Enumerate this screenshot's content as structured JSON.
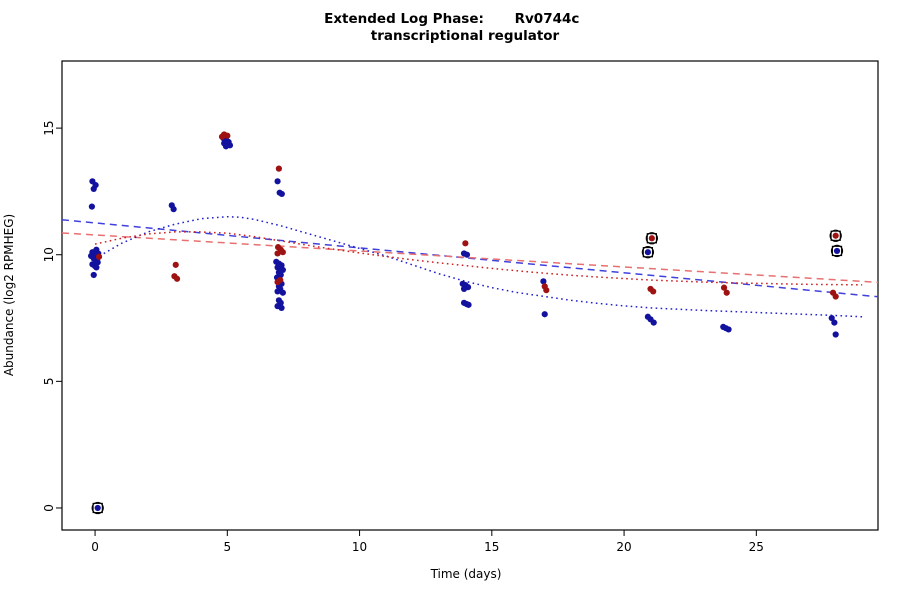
{
  "chart_data": {
    "type": "scatter",
    "title": {
      "line1_left": "Extended Log Phase:",
      "line1_right": "Rv0744c",
      "line2": "transcriptional regulator"
    },
    "xlabel": "Time  (days)",
    "ylabel": "Abundance  (log2 RPMHEG)",
    "xlim": [
      -1.25,
      29.6
    ],
    "ylim": [
      -0.87,
      17.65
    ],
    "xticks": [
      0,
      5,
      10,
      15,
      20,
      25
    ],
    "yticks": [
      0,
      5,
      10,
      15
    ],
    "grid": false,
    "legend": "none",
    "series": [
      {
        "name": "blue-condition",
        "color": "#12129e",
        "points": [
          [
            -0.1,
            12.9
          ],
          [
            0.02,
            12.75
          ],
          [
            -0.05,
            12.6
          ],
          [
            -0.12,
            11.9
          ],
          [
            0.05,
            10.2
          ],
          [
            -0.1,
            10.1
          ],
          [
            0.12,
            10.05
          ],
          [
            0.0,
            10.0
          ],
          [
            -0.15,
            9.95
          ],
          [
            0.1,
            9.88
          ],
          [
            -0.05,
            9.85
          ],
          [
            0.06,
            9.78
          ],
          [
            0.1,
            9.7
          ],
          [
            -0.1,
            9.62
          ],
          [
            0.0,
            9.55
          ],
          [
            0.05,
            9.5
          ],
          [
            -0.05,
            9.2
          ],
          [
            2.9,
            11.95
          ],
          [
            2.97,
            11.8
          ],
          [
            4.85,
            14.6
          ],
          [
            4.92,
            14.55
          ],
          [
            4.98,
            14.5
          ],
          [
            5.05,
            14.45
          ],
          [
            4.88,
            14.4
          ],
          [
            5.0,
            14.38
          ],
          [
            5.1,
            14.32
          ],
          [
            4.95,
            14.28
          ],
          [
            6.9,
            12.9
          ],
          [
            6.98,
            12.45
          ],
          [
            7.06,
            12.4
          ],
          [
            6.85,
            9.72
          ],
          [
            6.95,
            9.65
          ],
          [
            7.05,
            9.58
          ],
          [
            6.9,
            9.5
          ],
          [
            7.0,
            9.45
          ],
          [
            7.1,
            9.4
          ],
          [
            6.95,
            9.3
          ],
          [
            7.02,
            9.2
          ],
          [
            6.88,
            9.1
          ],
          [
            7.05,
            8.85
          ],
          [
            6.95,
            8.75
          ],
          [
            7.0,
            8.65
          ],
          [
            6.9,
            8.55
          ],
          [
            7.1,
            8.5
          ],
          [
            6.95,
            8.2
          ],
          [
            7.02,
            8.1
          ],
          [
            6.9,
            7.97
          ],
          [
            7.05,
            7.9
          ],
          [
            13.95,
            10.05
          ],
          [
            14.06,
            10.0
          ],
          [
            13.9,
            8.85
          ],
          [
            14.0,
            8.8
          ],
          [
            14.1,
            8.72
          ],
          [
            13.95,
            8.65
          ],
          [
            13.95,
            8.1
          ],
          [
            14.05,
            8.05
          ],
          [
            14.12,
            8.02
          ],
          [
            16.95,
            8.95
          ],
          [
            17.0,
            7.65
          ],
          [
            20.9,
            7.55
          ],
          [
            21.0,
            7.45
          ],
          [
            21.12,
            7.32
          ],
          [
            23.75,
            7.15
          ],
          [
            23.85,
            7.1
          ],
          [
            23.95,
            7.05
          ],
          [
            27.85,
            7.5
          ],
          [
            27.95,
            7.32
          ],
          [
            28.0,
            6.85
          ],
          [
            20.9,
            10.1
          ],
          [
            28.05,
            10.15
          ],
          [
            0.1,
            0.0
          ]
        ]
      },
      {
        "name": "red-condition",
        "color": "#9e1212",
        "points": [
          [
            0.15,
            9.92
          ],
          [
            3.05,
            9.6
          ],
          [
            3.0,
            9.15
          ],
          [
            3.1,
            9.05
          ],
          [
            4.88,
            14.75
          ],
          [
            5.0,
            14.7
          ],
          [
            4.8,
            14.66
          ],
          [
            6.95,
            13.4
          ],
          [
            6.92,
            10.3
          ],
          [
            7.02,
            10.2
          ],
          [
            7.1,
            10.1
          ],
          [
            6.9,
            10.05
          ],
          [
            7.0,
            9.0
          ],
          [
            6.9,
            8.92
          ],
          [
            14.0,
            10.45
          ],
          [
            17.0,
            8.75
          ],
          [
            17.06,
            8.6
          ],
          [
            21.0,
            8.65
          ],
          [
            21.1,
            8.55
          ],
          [
            23.78,
            8.7
          ],
          [
            23.88,
            8.5
          ],
          [
            27.9,
            8.5
          ],
          [
            28.0,
            8.35
          ],
          [
            21.05,
            10.65
          ],
          [
            28.0,
            10.75
          ]
        ]
      }
    ],
    "outlier_marks": {
      "color": "#000000",
      "points": [
        [
          0.1,
          0.0
        ],
        [
          21.05,
          10.65
        ],
        [
          20.9,
          10.1
        ],
        [
          28.0,
          10.75
        ],
        [
          28.05,
          10.15
        ]
      ]
    },
    "lines": [
      {
        "name": "blue-dashed-trend",
        "color": "#4040dd",
        "style": "dashed",
        "points": [
          [
            -1.25,
            11.38
          ],
          [
            29.6,
            8.34
          ]
        ]
      },
      {
        "name": "red-dashed-trend",
        "color": "#e87070",
        "style": "dashed",
        "points": [
          [
            -1.25,
            10.86
          ],
          [
            29.6,
            8.91
          ]
        ]
      },
      {
        "name": "blue-dotted-smooth",
        "color": "#2020cc",
        "style": "dotted",
        "points": [
          [
            0,
            9.85
          ],
          [
            1,
            10.45
          ],
          [
            2,
            10.9
          ],
          [
            3,
            11.2
          ],
          [
            4,
            11.42
          ],
          [
            5,
            11.5
          ],
          [
            5.5,
            11.48
          ],
          [
            6,
            11.4
          ],
          [
            7,
            11.15
          ],
          [
            8,
            10.85
          ],
          [
            9,
            10.55
          ],
          [
            10,
            10.25
          ],
          [
            11,
            9.95
          ],
          [
            12,
            9.6
          ],
          [
            13,
            9.25
          ],
          [
            14,
            8.95
          ],
          [
            15,
            8.7
          ],
          [
            16,
            8.5
          ],
          [
            17,
            8.35
          ],
          [
            18,
            8.2
          ],
          [
            19,
            8.08
          ],
          [
            20,
            7.98
          ],
          [
            21,
            7.9
          ],
          [
            22,
            7.85
          ],
          [
            23,
            7.8
          ],
          [
            24,
            7.76
          ],
          [
            25,
            7.72
          ],
          [
            26,
            7.68
          ],
          [
            27,
            7.64
          ],
          [
            28,
            7.6
          ],
          [
            29,
            7.55
          ]
        ]
      },
      {
        "name": "red-dotted-smooth",
        "color": "#cc2020",
        "style": "dotted",
        "points": [
          [
            0,
            10.42
          ],
          [
            1,
            10.65
          ],
          [
            2,
            10.82
          ],
          [
            3,
            10.9
          ],
          [
            4,
            10.9
          ],
          [
            5,
            10.85
          ],
          [
            6,
            10.72
          ],
          [
            7,
            10.55
          ],
          [
            8,
            10.38
          ],
          [
            9,
            10.22
          ],
          [
            10,
            10.07
          ],
          [
            11,
            9.93
          ],
          [
            12,
            9.8
          ],
          [
            13,
            9.68
          ],
          [
            14,
            9.57
          ],
          [
            15,
            9.46
          ],
          [
            16,
            9.36
          ],
          [
            17,
            9.27
          ],
          [
            18,
            9.19
          ],
          [
            19,
            9.12
          ],
          [
            20,
            9.06
          ],
          [
            21,
            9.0
          ],
          [
            22,
            8.96
          ],
          [
            23,
            8.92
          ],
          [
            24,
            8.89
          ],
          [
            25,
            8.87
          ],
          [
            26,
            8.85
          ],
          [
            27,
            8.83
          ],
          [
            28,
            8.82
          ],
          [
            29,
            8.81
          ]
        ]
      }
    ]
  }
}
